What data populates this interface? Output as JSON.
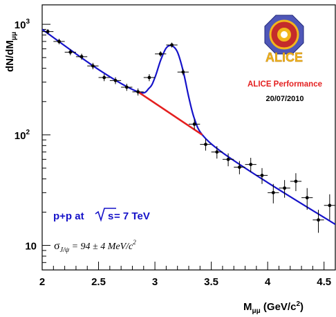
{
  "chart_data": {
    "type": "scatter",
    "y_scale": "log",
    "xlim": [
      2.0,
      4.6
    ],
    "ylim": [
      6,
      1500
    ],
    "x_ticks": [
      "2",
      "2.5",
      "3",
      "3.5",
      "4",
      "4.5"
    ],
    "y_ticks": [
      {
        "value": 10,
        "label": "10"
      },
      {
        "value": 100,
        "label": "10"
      },
      {
        "value": 1000,
        "label": "10"
      }
    ],
    "y_tick_exponents": [
      "",
      "2",
      "3"
    ],
    "xlabel": {
      "main": "M",
      "sub": "μμ",
      "unit": " (GeV/c",
      "sup": "2",
      "close": ")"
    },
    "ylabel": {
      "main": "dN/dM",
      "sub": "μμ"
    },
    "points": [
      {
        "x": 2.05,
        "y": 860,
        "yerr": 45
      },
      {
        "x": 2.15,
        "y": 700,
        "yerr": 40
      },
      {
        "x": 2.25,
        "y": 560,
        "yerr": 35
      },
      {
        "x": 2.35,
        "y": 510,
        "yerr": 32
      },
      {
        "x": 2.45,
        "y": 420,
        "yerr": 28
      },
      {
        "x": 2.55,
        "y": 330,
        "yerr": 24
      },
      {
        "x": 2.65,
        "y": 310,
        "yerr": 22
      },
      {
        "x": 2.75,
        "y": 270,
        "yerr": 20
      },
      {
        "x": 2.85,
        "y": 245,
        "yerr": 18
      },
      {
        "x": 2.95,
        "y": 330,
        "yerr": 24
      },
      {
        "x": 3.05,
        "y": 540,
        "yerr": 30
      },
      {
        "x": 3.15,
        "y": 650,
        "yerr": 33
      },
      {
        "x": 3.25,
        "y": 370,
        "yerr": 24
      },
      {
        "x": 3.35,
        "y": 125,
        "yerr": 13
      },
      {
        "x": 3.45,
        "y": 82,
        "yerr": 10
      },
      {
        "x": 3.55,
        "y": 70,
        "yerr": 9
      },
      {
        "x": 3.65,
        "y": 60,
        "yerr": 8
      },
      {
        "x": 3.75,
        "y": 51,
        "yerr": 7
      },
      {
        "x": 3.85,
        "y": 54,
        "yerr": 8
      },
      {
        "x": 3.95,
        "y": 43,
        "yerr": 7
      },
      {
        "x": 4.05,
        "y": 30,
        "yerr": 6
      },
      {
        "x": 4.15,
        "y": 33,
        "yerr": 6
      },
      {
        "x": 4.25,
        "y": 38,
        "yerr": 7
      },
      {
        "x": 4.35,
        "y": 27,
        "yerr": 6
      },
      {
        "x": 4.45,
        "y": 17,
        "yerr": 4
      },
      {
        "x": 4.55,
        "y": 23,
        "yerr": 6
      }
    ],
    "fit_total": [
      [
        2.0,
        900
      ],
      [
        2.5,
        390
      ],
      [
        2.85,
        245
      ],
      [
        2.95,
        265
      ],
      [
        3.0,
        330
      ],
      [
        3.05,
        470
      ],
      [
        3.1,
        610
      ],
      [
        3.15,
        640
      ],
      [
        3.2,
        560
      ],
      [
        3.25,
        380
      ],
      [
        3.3,
        220
      ],
      [
        3.35,
        140
      ],
      [
        3.42,
        100
      ],
      [
        3.6,
        69
      ],
      [
        4.0,
        37
      ],
      [
        4.6,
        15.5
      ]
    ],
    "fit_background": [
      [
        2.85,
        245
      ],
      [
        3.42,
        100
      ]
    ],
    "colors": {
      "total_fit": "#1512c9",
      "background_fit": "#e41f1f",
      "markers": "#000000"
    },
    "annotations": {
      "performance": "ALICE Performance",
      "date": "20/07/2010",
      "logo_text": "ALICE",
      "energy": {
        "prefix": "p+p at",
        "root": "s",
        "suffix": " = 7 TeV"
      },
      "sigma": {
        "symbol": "σ",
        "sub": "J/ψ",
        "text": " = 94 ± 4 MeV/c",
        "sup": "2"
      }
    }
  }
}
